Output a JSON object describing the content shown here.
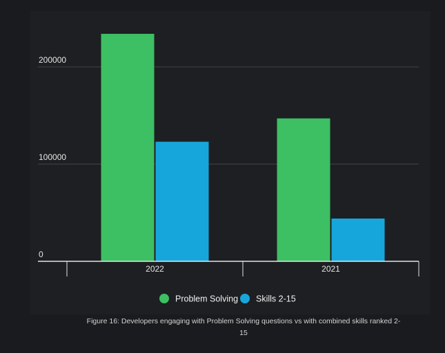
{
  "chart_data": {
    "type": "bar",
    "categories": [
      "2022",
      "2021"
    ],
    "series": [
      {
        "name": "Problem Solving",
        "values": [
          234000,
          147000
        ],
        "color": "#3dbf63"
      },
      {
        "name": "Skills 2-15",
        "values": [
          123000,
          44000
        ],
        "color": "#17a6dc"
      }
    ],
    "yticks": [
      0,
      100000,
      200000
    ],
    "ylim": [
      0,
      250000
    ],
    "grid": true,
    "legend_position": "bottom",
    "caption": "Figure 16: Developers engaging with Problem Solving questions vs with combined skills ranked 2-15"
  },
  "colors": {
    "background": "#1a1b1e",
    "gridline": "#44464a",
    "axis": "#e6e6e6"
  }
}
